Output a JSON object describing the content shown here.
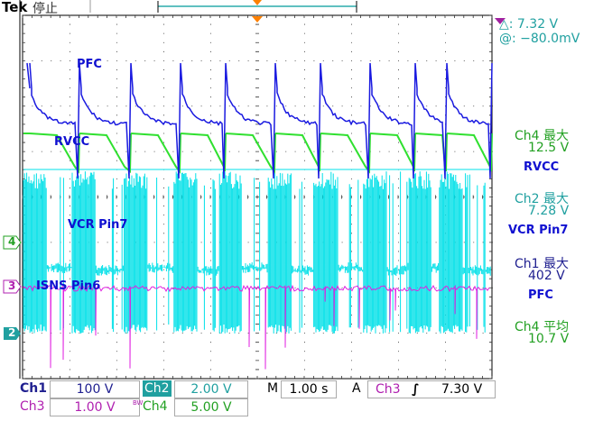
{
  "header": {
    "brand": "Tek",
    "status": "停止"
  },
  "cursor": {
    "delta": "△:    7.32 V",
    "at": "@:  −80.0mV"
  },
  "annotations": {
    "pfc": "PFC",
    "rvcc": "RVCC",
    "vcr": "VCR  Pin7",
    "isns": "ISNS  Pin6"
  },
  "markers": {
    "ch4": "4",
    "ch3": "3",
    "ch2": "2"
  },
  "measurements": [
    {
      "label": "Ch4 最大",
      "value": "12.5 V",
      "color": "#22a022",
      "note": "RVCC",
      "note_color": "#1010d0"
    },
    {
      "label": "Ch2 最大",
      "value": "7.28 V",
      "color": "#20a0a0",
      "note": "VCR  Pin7",
      "note_color": "#1010d0"
    },
    {
      "label": "Ch1 最大",
      "value": "402 V",
      "color": "#202090",
      "note": "PFC",
      "note_color": "#1010d0"
    },
    {
      "label": "Ch4 平均",
      "value": "10.7 V",
      "color": "#22a022",
      "note": "",
      "note_color": "#1010d0"
    }
  ],
  "footer": {
    "ch1": {
      "label": "Ch1",
      "value": "100 V",
      "color": "#202090"
    },
    "ch2": {
      "label": "Ch2",
      "value": "2.00 V",
      "color": "#20a0a0"
    },
    "ch3": {
      "label": "Ch3",
      "value": "1.00 V",
      "color": "#b020b0"
    },
    "bw": "BW",
    "ch4": {
      "label": "Ch4",
      "value": "5.00 V",
      "color": "#22a022"
    },
    "timebase_label": "M",
    "timebase": "1.00 s",
    "trigger_mode": "A",
    "trigger_source": "Ch3",
    "trigger_slope": "rising-edge-icon",
    "trigger_level": "7.30 V"
  },
  "colors": {
    "ch1": "#1a1ae0",
    "ch2": "#00e0e8",
    "ch3": "#e020e0",
    "ch4": "#30e030",
    "grid": "#000000",
    "trigger": "#ff8000"
  }
}
